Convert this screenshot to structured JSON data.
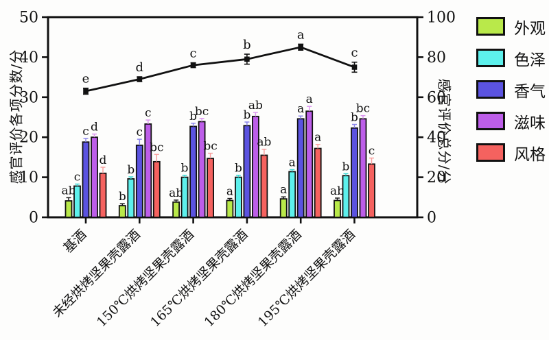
{
  "chart_data": {
    "type": "bar+line",
    "title": "",
    "categories": [
      "基酒",
      "未经烘烤坚果壳露酒",
      "150℃烘烤坚果壳露酒",
      "165℃烘烤坚果壳露酒",
      "180℃烘烤坚果壳露酒",
      "195℃烘烤坚果壳露酒"
    ],
    "ylabel_left": "感官评价各项分数/分",
    "ylabel_right": "感官评价总分/分",
    "ylim_left": [
      0,
      50
    ],
    "ylim_right": [
      0,
      100
    ],
    "yticks_left": [
      0,
      10,
      20,
      30,
      40,
      50
    ],
    "yticks_right": [
      0,
      20,
      40,
      60,
      80,
      100
    ],
    "grid": "off",
    "legend_position": "right",
    "series": [
      {
        "name": "外观",
        "color": "#b9e94a",
        "err_color": "#1a1a1a",
        "values": [
          4.1,
          2.9,
          3.8,
          4.2,
          4.6,
          4.2
        ],
        "errors": [
          0.8,
          0.5,
          0.5,
          0.5,
          0.5,
          0.6
        ],
        "letters": [
          "ab",
          "b",
          "ab",
          "a",
          "a",
          "ab"
        ]
      },
      {
        "name": "色泽",
        "color": "#5df0ec",
        "err_color": "#3bd8d4",
        "values": [
          7.8,
          9.6,
          10.0,
          10.0,
          11.4,
          10.4
        ],
        "errors": [
          0.5,
          0.5,
          0.5,
          0.5,
          0.5,
          0.5
        ],
        "letters": [
          "c",
          "b",
          "b",
          "b",
          "a",
          "b"
        ]
      },
      {
        "name": "香气",
        "color": "#5b53e0",
        "err_color": "#8d87ec",
        "values": [
          18.8,
          18.0,
          22.7,
          22.9,
          24.6,
          22.3
        ],
        "errors": [
          0.9,
          1.5,
          0.8,
          0.9,
          0.7,
          0.9
        ],
        "letters": [
          "c",
          "c",
          "b",
          "b",
          "a",
          "b"
        ]
      },
      {
        "name": "滋味",
        "color": "#bd5ee9",
        "err_color": "#dd97f1",
        "values": [
          20.0,
          23.3,
          23.9,
          25.2,
          26.5,
          24.6
        ],
        "errors": [
          0.8,
          1.0,
          0.8,
          1.0,
          1.2,
          0.8
        ],
        "letters": [
          "d",
          "c",
          "bc",
          "ab",
          "a",
          "bc"
        ]
      },
      {
        "name": "风格",
        "color": "#f5625f",
        "err_color": "#f9a09e",
        "values": [
          11.0,
          13.9,
          14.7,
          15.5,
          17.2,
          13.3
        ],
        "errors": [
          1.5,
          1.8,
          1.3,
          1.5,
          1.0,
          1.5
        ],
        "letters": [
          "d",
          "bc",
          "bc",
          "ab",
          "a",
          "c"
        ]
      }
    ],
    "line_series": {
      "name": "感官评价总分",
      "color": "#111111",
      "axis": "right",
      "values": [
        63,
        69,
        76,
        79,
        85,
        75
      ],
      "errors": [
        1.5,
        1.2,
        1.2,
        2.5,
        1.5,
        2.5
      ],
      "letters": [
        "e",
        "d",
        "c",
        "b",
        "a",
        "c"
      ]
    }
  }
}
